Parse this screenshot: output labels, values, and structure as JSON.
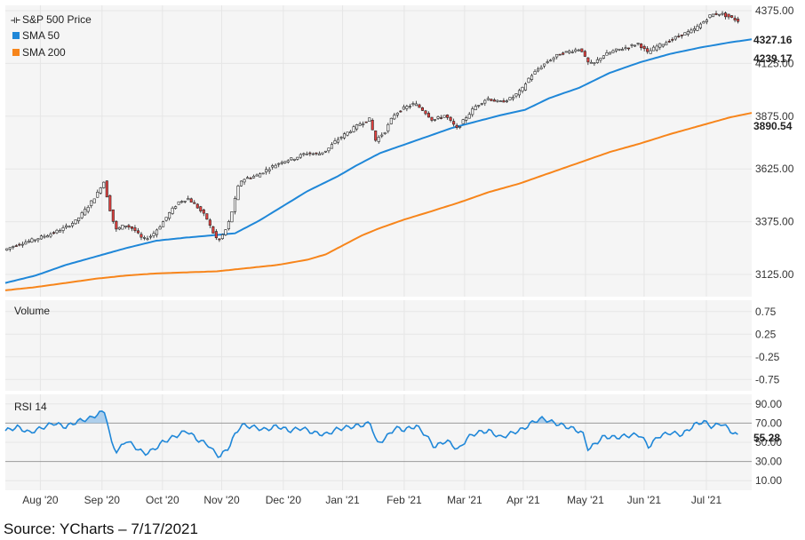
{
  "colors": {
    "price": "#222222",
    "up": "#ffffff",
    "down": "#e8413f",
    "sma50": "#1f87d8",
    "sma200": "#f7851b",
    "rsi": "#1f87d8",
    "rsi_fill": "#9cc5ea",
    "grid": "#e6e6e6",
    "plot_bg": "#f5f5f5"
  },
  "source": "Source: YCharts – 7/17/2021",
  "chart_data": [
    {
      "type": "line",
      "panel": "price",
      "legend": [
        "S&P 500 Price",
        "SMA 50",
        "SMA 200"
      ],
      "legend_icons": [
        "candlestick-icon",
        "square-icon",
        "square-icon"
      ],
      "legend_placement": "top-left",
      "y_ticks": [
        "3125.00",
        "3375.00",
        "3625.00",
        "3875.00",
        "4125.00",
        "4375.00"
      ],
      "ylim": [
        3020,
        4400
      ],
      "last_values": {
        "price": "4327.16",
        "sma50": "4239.17",
        "sma200": "3890.54"
      },
      "x_ticks": [
        "Aug '20",
        "Sep '20",
        "Oct '20",
        "Nov '20",
        "Dec '20",
        "Jan '21",
        "Feb '21",
        "Mar '21",
        "Apr '21",
        "May '21",
        "Jun '21",
        "Jul '21"
      ],
      "x_tick_pos": [
        0.58,
        1.6,
        2.6,
        3.58,
        4.6,
        5.58,
        6.6,
        7.6,
        8.57,
        9.6,
        10.57,
        11.6
      ],
      "xlim": [
        0,
        12.35
      ],
      "price_anchor": [
        [
          0,
          3240
        ],
        [
          0.2,
          3265
        ],
        [
          0.5,
          3290
        ],
        [
          0.8,
          3320
        ],
        [
          1.0,
          3345
        ],
        [
          1.2,
          3380
        ],
        [
          1.4,
          3450
        ],
        [
          1.55,
          3510
        ],
        [
          1.65,
          3570
        ],
        [
          1.75,
          3440
        ],
        [
          1.85,
          3335
        ],
        [
          2.0,
          3360
        ],
        [
          2.15,
          3340
        ],
        [
          2.3,
          3290
        ],
        [
          2.45,
          3310
        ],
        [
          2.6,
          3360
        ],
        [
          2.75,
          3420
        ],
        [
          2.9,
          3470
        ],
        [
          3.05,
          3485
        ],
        [
          3.2,
          3445
        ],
        [
          3.35,
          3395
        ],
        [
          3.45,
          3330
        ],
        [
          3.55,
          3280
        ],
        [
          3.7,
          3350
        ],
        [
          3.8,
          3450
        ],
        [
          3.9,
          3565
        ],
        [
          4.0,
          3580
        ],
        [
          4.2,
          3595
        ],
        [
          4.4,
          3630
        ],
        [
          4.6,
          3660
        ],
        [
          4.8,
          3675
        ],
        [
          5.0,
          3700
        ],
        [
          5.2,
          3695
        ],
        [
          5.35,
          3715
        ],
        [
          5.5,
          3760
        ],
        [
          5.7,
          3800
        ],
        [
          5.9,
          3840
        ],
        [
          6.05,
          3860
        ],
        [
          6.15,
          3760
        ],
        [
          6.3,
          3800
        ],
        [
          6.45,
          3880
        ],
        [
          6.6,
          3910
        ],
        [
          6.8,
          3935
        ],
        [
          6.95,
          3900
        ],
        [
          7.1,
          3855
        ],
        [
          7.3,
          3880
        ],
        [
          7.5,
          3815
        ],
        [
          7.65,
          3870
        ],
        [
          7.8,
          3920
        ],
        [
          8.0,
          3960
        ],
        [
          8.2,
          3940
        ],
        [
          8.4,
          3960
        ],
        [
          8.57,
          4000
        ],
        [
          8.7,
          4060
        ],
        [
          8.85,
          4100
        ],
        [
          9.0,
          4135
        ],
        [
          9.2,
          4170
        ],
        [
          9.4,
          4185
        ],
        [
          9.55,
          4195
        ],
        [
          9.65,
          4130
        ],
        [
          9.75,
          4120
        ],
        [
          9.9,
          4160
        ],
        [
          10.1,
          4185
        ],
        [
          10.3,
          4200
        ],
        [
          10.5,
          4220
        ],
        [
          10.65,
          4175
        ],
        [
          10.8,
          4205
        ],
        [
          11.0,
          4230
        ],
        [
          11.2,
          4260
        ],
        [
          11.4,
          4280
        ],
        [
          11.55,
          4315
        ],
        [
          11.7,
          4355
        ],
        [
          11.85,
          4362
        ],
        [
          12.0,
          4345
        ],
        [
          12.15,
          4327
        ]
      ],
      "sma50_anchor": [
        [
          0,
          3085
        ],
        [
          0.5,
          3120
        ],
        [
          1.0,
          3170
        ],
        [
          1.5,
          3210
        ],
        [
          2.0,
          3250
        ],
        [
          2.5,
          3285
        ],
        [
          3.0,
          3300
        ],
        [
          3.4,
          3310
        ],
        [
          3.8,
          3320
        ],
        [
          4.2,
          3380
        ],
        [
          4.6,
          3450
        ],
        [
          5.0,
          3520
        ],
        [
          5.5,
          3590
        ],
        [
          5.8,
          3640
        ],
        [
          6.2,
          3700
        ],
        [
          6.6,
          3740
        ],
        [
          7.0,
          3780
        ],
        [
          7.4,
          3820
        ],
        [
          7.8,
          3850
        ],
        [
          8.2,
          3880
        ],
        [
          8.6,
          3905
        ],
        [
          9.0,
          3960
        ],
        [
          9.5,
          4010
        ],
        [
          10.0,
          4080
        ],
        [
          10.5,
          4130
        ],
        [
          11.0,
          4170
        ],
        [
          11.5,
          4200
        ],
        [
          12.0,
          4225
        ],
        [
          12.35,
          4239.17
        ]
      ],
      "sma200_anchor": [
        [
          0,
          3050
        ],
        [
          0.5,
          3065
        ],
        [
          1.0,
          3085
        ],
        [
          1.5,
          3105
        ],
        [
          2.0,
          3120
        ],
        [
          2.5,
          3130
        ],
        [
          3.0,
          3135
        ],
        [
          3.5,
          3140
        ],
        [
          4.0,
          3155
        ],
        [
          4.5,
          3170
        ],
        [
          5.0,
          3195
        ],
        [
          5.3,
          3220
        ],
        [
          5.6,
          3265
        ],
        [
          5.9,
          3310
        ],
        [
          6.2,
          3345
        ],
        [
          6.6,
          3385
        ],
        [
          7.0,
          3420
        ],
        [
          7.5,
          3465
        ],
        [
          8.0,
          3515
        ],
        [
          8.5,
          3555
        ],
        [
          9.0,
          3605
        ],
        [
          9.5,
          3655
        ],
        [
          10.0,
          3705
        ],
        [
          10.5,
          3745
        ],
        [
          11.0,
          3790
        ],
        [
          11.5,
          3830
        ],
        [
          12.0,
          3870
        ],
        [
          12.35,
          3890.54
        ]
      ]
    },
    {
      "type": "line",
      "panel": "volume",
      "label": "Volume",
      "y_ticks": [
        "0.75",
        "0.25",
        "-0.25",
        "-0.75"
      ],
      "y_tick_vals": [
        0.75,
        0.25,
        -0.25,
        -0.75
      ],
      "ylim": [
        -1,
        1
      ]
    },
    {
      "type": "line",
      "panel": "rsi",
      "label": "RSI 14",
      "y_ticks": [
        "90.00",
        "70.00",
        "50.00",
        "30.00",
        "10.00"
      ],
      "y_tick_vals": [
        90,
        70,
        50,
        30,
        10
      ],
      "ylim": [
        0,
        100
      ],
      "overbought": 70,
      "oversold": 30,
      "last_value": "55.28",
      "rsi_anchor": [
        [
          0,
          62
        ],
        [
          0.2,
          66
        ],
        [
          0.4,
          60
        ],
        [
          0.6,
          65
        ],
        [
          0.8,
          70
        ],
        [
          1.0,
          66
        ],
        [
          1.2,
          72
        ],
        [
          1.4,
          75
        ],
        [
          1.55,
          80
        ],
        [
          1.65,
          83
        ],
        [
          1.75,
          50
        ],
        [
          1.85,
          40
        ],
        [
          2.0,
          52
        ],
        [
          2.15,
          45
        ],
        [
          2.3,
          38
        ],
        [
          2.45,
          42
        ],
        [
          2.6,
          50
        ],
        [
          2.8,
          56
        ],
        [
          3.0,
          62
        ],
        [
          3.2,
          52
        ],
        [
          3.35,
          48
        ],
        [
          3.45,
          40
        ],
        [
          3.55,
          35
        ],
        [
          3.7,
          45
        ],
        [
          3.8,
          58
        ],
        [
          3.9,
          68
        ],
        [
          4.1,
          66
        ],
        [
          4.3,
          63
        ],
        [
          4.5,
          67
        ],
        [
          4.7,
          62
        ],
        [
          4.9,
          65
        ],
        [
          5.1,
          60
        ],
        [
          5.3,
          58
        ],
        [
          5.5,
          64
        ],
        [
          5.7,
          66
        ],
        [
          5.9,
          68
        ],
        [
          6.05,
          70
        ],
        [
          6.15,
          48
        ],
        [
          6.3,
          55
        ],
        [
          6.45,
          65
        ],
        [
          6.6,
          63
        ],
        [
          6.8,
          67
        ],
        [
          6.95,
          58
        ],
        [
          7.1,
          45
        ],
        [
          7.3,
          52
        ],
        [
          7.5,
          42
        ],
        [
          7.65,
          55
        ],
        [
          7.8,
          60
        ],
        [
          8.0,
          62
        ],
        [
          8.2,
          55
        ],
        [
          8.4,
          60
        ],
        [
          8.57,
          64
        ],
        [
          8.75,
          72
        ],
        [
          8.9,
          75
        ],
        [
          9.0,
          72
        ],
        [
          9.2,
          68
        ],
        [
          9.4,
          64
        ],
        [
          9.55,
          60
        ],
        [
          9.65,
          42
        ],
        [
          9.75,
          48
        ],
        [
          9.9,
          56
        ],
        [
          10.1,
          55
        ],
        [
          10.3,
          57
        ],
        [
          10.5,
          58
        ],
        [
          10.65,
          45
        ],
        [
          10.8,
          56
        ],
        [
          11.0,
          60
        ],
        [
          11.2,
          58
        ],
        [
          11.4,
          68
        ],
        [
          11.55,
          72
        ],
        [
          11.7,
          66
        ],
        [
          11.85,
          70
        ],
        [
          12.0,
          62
        ],
        [
          12.15,
          55.28
        ]
      ]
    }
  ]
}
